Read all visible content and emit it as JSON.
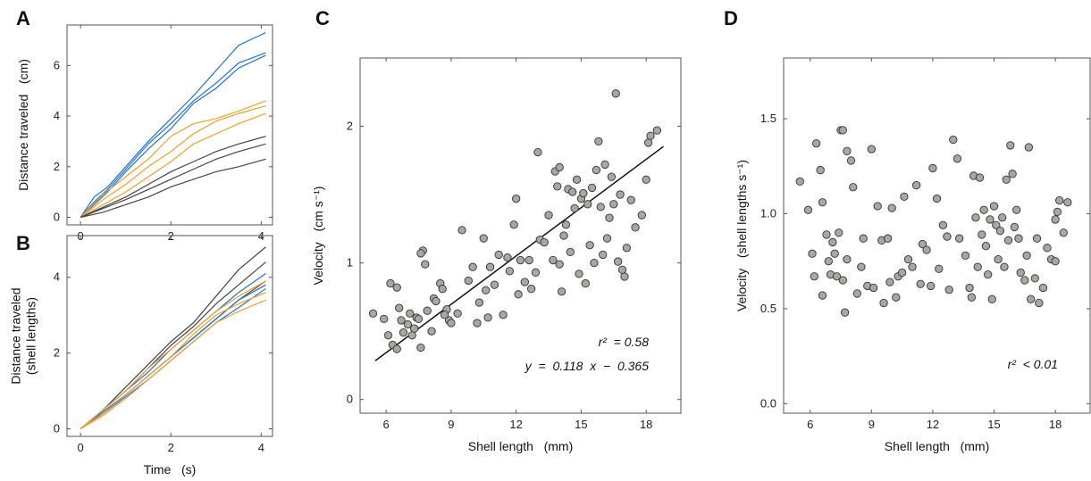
{
  "chart_data": [
    {
      "panel": "A",
      "type": "line",
      "xlabel": "",
      "ylabel": "Distance traveled   (cm)",
      "xlim": [
        -0.3,
        4.25
      ],
      "ylim": [
        -0.3,
        7.6
      ],
      "xticks": [
        0,
        2,
        4
      ],
      "yticks": [
        0,
        2,
        4,
        6
      ],
      "series": [
        {
          "color": "#1f6fd6",
          "x": [
            0,
            0.3,
            0.6,
            1,
            1.5,
            2,
            2.5,
            3,
            3.5,
            4.1
          ],
          "y": [
            0,
            0.8,
            1.2,
            2,
            3,
            3.9,
            4.8,
            5.8,
            6.8,
            7.3
          ]
        },
        {
          "color": "#1f6fd6",
          "x": [
            0,
            0.3,
            0.6,
            1,
            1.5,
            2,
            2.5,
            3,
            3.5,
            4.1
          ],
          "y": [
            0,
            0.6,
            1.1,
            1.9,
            2.9,
            3.7,
            4.6,
            5.3,
            6.1,
            6.5
          ]
        },
        {
          "color": "#1f6fd6",
          "x": [
            0,
            0.3,
            0.6,
            1,
            1.5,
            2,
            2.5,
            3,
            3.5,
            4.1
          ],
          "y": [
            0,
            0.5,
            1,
            1.8,
            2.7,
            3.5,
            4.5,
            5.1,
            5.9,
            6.4
          ]
        },
        {
          "color": "#f0a030",
          "x": [
            0,
            0.5,
            1,
            1.5,
            2,
            2.5,
            3,
            3.5,
            4.1
          ],
          "y": [
            0,
            0.9,
            1.6,
            2.3,
            3.2,
            3.7,
            3.9,
            4.2,
            4.6
          ]
        },
        {
          "color": "#f0a030",
          "x": [
            0,
            0.5,
            1,
            1.5,
            2,
            2.5,
            3,
            3.5,
            4.1
          ],
          "y": [
            0,
            0.7,
            1.3,
            2,
            2.6,
            3.3,
            3.8,
            4.1,
            4.4
          ]
        },
        {
          "color": "#f0a030",
          "x": [
            0,
            0.5,
            1,
            1.5,
            2,
            2.5,
            3,
            3.5,
            4.1
          ],
          "y": [
            0,
            0.5,
            1,
            1.6,
            2.2,
            2.9,
            3.3,
            3.7,
            4.1
          ]
        },
        {
          "color": "#444444",
          "x": [
            0,
            0.5,
            1,
            1.5,
            2,
            2.5,
            3,
            3.5,
            4.1
          ],
          "y": [
            0,
            0.4,
            0.8,
            1.3,
            1.8,
            2.2,
            2.6,
            2.9,
            3.2
          ]
        },
        {
          "color": "#444444",
          "x": [
            0,
            0.5,
            1,
            1.5,
            2,
            2.5,
            3,
            3.5,
            4.1
          ],
          "y": [
            0,
            0.35,
            0.7,
            1.1,
            1.5,
            1.9,
            2.3,
            2.6,
            2.9
          ]
        },
        {
          "color": "#444444",
          "x": [
            0,
            0.5,
            1,
            1.5,
            2,
            2.5,
            3,
            3.5,
            4.1
          ],
          "y": [
            0,
            0.2,
            0.5,
            0.8,
            1.2,
            1.5,
            1.8,
            2.0,
            2.3
          ]
        }
      ]
    },
    {
      "panel": "B",
      "type": "line",
      "xlabel": "Time   (s)",
      "ylabel": "Distance traveled\n(shell lengths)",
      "xlim": [
        -0.3,
        4.25
      ],
      "ylim": [
        -0.2,
        5.1
      ],
      "xticks": [
        0,
        2,
        4
      ],
      "yticks": [
        0,
        2,
        4
      ],
      "series": [
        {
          "color": "#444444",
          "x": [
            0,
            0.5,
            1,
            1.5,
            2,
            2.5,
            3,
            3.5,
            4.1
          ],
          "y": [
            0,
            0.5,
            1.1,
            1.7,
            2.3,
            2.8,
            3.5,
            4.2,
            4.8
          ]
        },
        {
          "color": "#444444",
          "x": [
            0,
            0.5,
            1,
            1.5,
            2,
            2.5,
            3,
            3.5,
            4.1
          ],
          "y": [
            0,
            0.5,
            1,
            1.6,
            2.2,
            2.7,
            3.3,
            3.8,
            4.4
          ]
        },
        {
          "color": "#444444",
          "x": [
            0,
            0.5,
            1,
            1.5,
            2,
            2.5,
            3,
            3.5,
            4.1
          ],
          "y": [
            0,
            0.4,
            0.9,
            1.4,
            1.9,
            2.4,
            2.9,
            3.4,
            3.9
          ]
        },
        {
          "color": "#1f6fd6",
          "x": [
            0,
            0.5,
            1,
            1.5,
            2,
            2.5,
            3,
            3.5,
            4.1
          ],
          "y": [
            0,
            0.5,
            1,
            1.5,
            2.1,
            2.6,
            3.1,
            3.6,
            4.1
          ]
        },
        {
          "color": "#1f6fd6",
          "x": [
            0,
            0.5,
            1,
            1.5,
            2,
            2.5,
            3,
            3.5,
            4.1
          ],
          "y": [
            0,
            0.45,
            0.9,
            1.4,
            1.9,
            2.4,
            2.9,
            3.4,
            3.8
          ]
        },
        {
          "color": "#1f6fd6",
          "x": [
            0,
            0.5,
            1,
            1.5,
            2,
            2.5,
            3,
            3.5,
            4.1
          ],
          "y": [
            0,
            0.4,
            0.85,
            1.3,
            1.8,
            2.3,
            2.8,
            3.2,
            3.7
          ]
        },
        {
          "color": "#f0a030",
          "x": [
            0,
            0.5,
            1,
            1.5,
            2,
            2.5,
            3,
            3.5,
            4.1
          ],
          "y": [
            0,
            0.5,
            1,
            1.6,
            2.1,
            2.6,
            3.1,
            3.5,
            3.9
          ]
        },
        {
          "color": "#f0a030",
          "x": [
            0,
            0.5,
            1,
            1.5,
            2,
            2.5,
            3,
            3.5,
            4.1
          ],
          "y": [
            0,
            0.4,
            0.9,
            1.4,
            1.9,
            2.5,
            3,
            3.3,
            3.6
          ]
        },
        {
          "color": "#f0a030",
          "x": [
            0,
            0.5,
            1,
            1.5,
            2,
            2.5,
            3,
            3.5,
            4.1
          ],
          "y": [
            0,
            0.35,
            0.8,
            1.3,
            1.8,
            2.3,
            2.8,
            3.1,
            3.4
          ]
        }
      ]
    },
    {
      "panel": "C",
      "type": "scatter",
      "xlabel": "Shell length   (mm)",
      "ylabel": "Velocity   (cm s⁻¹)",
      "xlim": [
        4.8,
        19.6
      ],
      "ylim": [
        -0.1,
        2.5
      ],
      "xticks": [
        6,
        9,
        12,
        15,
        18
      ],
      "yticks": [
        0,
        1,
        2
      ],
      "point_color": "#a8a8a0",
      "fit_line": {
        "x": [
          5.5,
          18.8
        ],
        "y": [
          0.284,
          1.853
        ]
      },
      "annotations": [
        "r²  = 0.58",
        "y  =  0.118  x  −  0.365"
      ],
      "points": [
        [
          5.4,
          0.63
        ],
        [
          5.9,
          0.59
        ],
        [
          6.1,
          0.47
        ],
        [
          6.3,
          0.4
        ],
        [
          6.2,
          0.85
        ],
        [
          6.5,
          0.82
        ],
        [
          6.7,
          0.58
        ],
        [
          6.8,
          0.49
        ],
        [
          6.5,
          0.37
        ],
        [
          6.6,
          0.67
        ],
        [
          7.0,
          0.55
        ],
        [
          7.1,
          0.63
        ],
        [
          7.2,
          0.47
        ],
        [
          7.4,
          0.6
        ],
        [
          7.3,
          0.52
        ],
        [
          7.5,
          0.59
        ],
        [
          7.6,
          0.38
        ],
        [
          7.7,
          1.09
        ],
        [
          7.6,
          1.07
        ],
        [
          7.8,
          0.99
        ],
        [
          7.9,
          0.65
        ],
        [
          8.1,
          0.5
        ],
        [
          8.2,
          0.74
        ],
        [
          8.3,
          0.72
        ],
        [
          8.5,
          0.85
        ],
        [
          8.6,
          0.81
        ],
        [
          8.8,
          0.66
        ],
        [
          8.9,
          0.58
        ],
        [
          9.0,
          0.56
        ],
        [
          9.3,
          0.63
        ],
        [
          9.5,
          1.24
        ],
        [
          9.8,
          0.87
        ],
        [
          10.0,
          0.97
        ],
        [
          10.2,
          0.56
        ],
        [
          10.3,
          0.71
        ],
        [
          10.5,
          1.18
        ],
        [
          10.6,
          0.8
        ],
        [
          10.8,
          0.97
        ],
        [
          11.0,
          0.84
        ],
        [
          11.2,
          1.06
        ],
        [
          11.4,
          0.62
        ],
        [
          11.6,
          1.04
        ],
        [
          11.7,
          0.94
        ],
        [
          11.9,
          1.28
        ],
        [
          12.0,
          1.47
        ],
        [
          12.1,
          0.77
        ],
        [
          12.2,
          1.02
        ],
        [
          12.4,
          0.86
        ],
        [
          12.6,
          1.02
        ],
        [
          12.7,
          0.81
        ],
        [
          13.0,
          1.81
        ],
        [
          13.1,
          1.17
        ],
        [
          13.3,
          1.15
        ],
        [
          13.5,
          1.35
        ],
        [
          13.7,
          1.02
        ],
        [
          13.8,
          1.67
        ],
        [
          13.9,
          1.56
        ],
        [
          14.0,
          1.7
        ],
        [
          14.1,
          0.79
        ],
        [
          14.2,
          1.2
        ],
        [
          14.3,
          1.28
        ],
        [
          14.4,
          1.54
        ],
        [
          14.5,
          1.08
        ],
        [
          14.6,
          1.52
        ],
        [
          14.7,
          1.4
        ],
        [
          14.8,
          1.61
        ],
        [
          14.9,
          0.92
        ],
        [
          15.0,
          1.47
        ],
        [
          15.1,
          1.51
        ],
        [
          15.2,
          0.85
        ],
        [
          15.3,
          1.43
        ],
        [
          15.5,
          1.55
        ],
        [
          15.6,
          1.0
        ],
        [
          15.7,
          1.68
        ],
        [
          15.8,
          1.89
        ],
        [
          15.9,
          1.41
        ],
        [
          16.0,
          1.06
        ],
        [
          16.1,
          1.72
        ],
        [
          16.2,
          1.18
        ],
        [
          16.3,
          1.33
        ],
        [
          16.5,
          1.43
        ],
        [
          16.6,
          2.24
        ],
        [
          16.7,
          1.01
        ],
        [
          16.8,
          1.5
        ],
        [
          17.0,
          0.9
        ],
        [
          17.1,
          1.11
        ],
        [
          17.3,
          1.46
        ],
        [
          17.5,
          1.26
        ],
        [
          17.8,
          1.35
        ],
        [
          18.0,
          1.61
        ],
        [
          18.1,
          1.88
        ],
        [
          18.2,
          1.93
        ],
        [
          18.5,
          1.97
        ],
        [
          12.9,
          0.93
        ],
        [
          14.0,
          0.99
        ],
        [
          15.4,
          1.13
        ],
        [
          16.4,
          1.63
        ],
        [
          16.9,
          0.95
        ],
        [
          10.7,
          0.6
        ],
        [
          8.7,
          0.62
        ]
      ]
    },
    {
      "panel": "D",
      "type": "scatter",
      "xlabel": "Shell length   (mm)",
      "ylabel": "Velocity   (shell lengths s⁻¹)",
      "xlim": [
        4.7,
        19.7
      ],
      "ylim": [
        -0.05,
        1.82
      ],
      "xticks": [
        6,
        9,
        12,
        15,
        18
      ],
      "yticks": [
        0.0,
        0.5,
        1.0,
        1.5
      ],
      "ytick_labels": [
        "0.0",
        "0.5",
        "1.0",
        "1.5"
      ],
      "point_color": "#a8a8a0",
      "annotations": [
        "r²  < 0.01"
      ],
      "points": [
        [
          5.5,
          1.17
        ],
        [
          5.9,
          1.02
        ],
        [
          6.1,
          0.79
        ],
        [
          6.2,
          0.67
        ],
        [
          6.3,
          1.37
        ],
        [
          6.5,
          1.23
        ],
        [
          6.6,
          1.06
        ],
        [
          6.6,
          0.57
        ],
        [
          6.8,
          0.89
        ],
        [
          6.9,
          0.75
        ],
        [
          7.0,
          0.68
        ],
        [
          7.1,
          0.85
        ],
        [
          7.2,
          0.79
        ],
        [
          7.3,
          0.67
        ],
        [
          7.4,
          0.9
        ],
        [
          7.5,
          1.44
        ],
        [
          7.6,
          1.44
        ],
        [
          7.6,
          0.65
        ],
        [
          7.7,
          0.48
        ],
        [
          7.8,
          1.33
        ],
        [
          7.8,
          0.76
        ],
        [
          8.0,
          1.28
        ],
        [
          8.1,
          1.14
        ],
        [
          8.3,
          0.58
        ],
        [
          8.5,
          0.72
        ],
        [
          8.6,
          0.87
        ],
        [
          8.8,
          0.62
        ],
        [
          9.0,
          1.34
        ],
        [
          9.1,
          0.61
        ],
        [
          9.3,
          1.04
        ],
        [
          9.5,
          0.86
        ],
        [
          9.6,
          0.53
        ],
        [
          9.8,
          0.87
        ],
        [
          10.0,
          1.03
        ],
        [
          10.2,
          0.56
        ],
        [
          10.3,
          0.67
        ],
        [
          10.5,
          0.69
        ],
        [
          10.6,
          1.09
        ],
        [
          10.8,
          0.76
        ],
        [
          11.0,
          0.72
        ],
        [
          11.2,
          1.15
        ],
        [
          11.5,
          0.84
        ],
        [
          11.7,
          0.81
        ],
        [
          11.9,
          0.62
        ],
        [
          12.0,
          1.24
        ],
        [
          12.2,
          1.08
        ],
        [
          12.3,
          0.71
        ],
        [
          12.5,
          0.94
        ],
        [
          12.7,
          0.88
        ],
        [
          12.8,
          0.6
        ],
        [
          13.0,
          1.39
        ],
        [
          13.2,
          1.29
        ],
        [
          13.3,
          0.87
        ],
        [
          13.6,
          0.78
        ],
        [
          13.8,
          0.61
        ],
        [
          14.0,
          1.2
        ],
        [
          14.1,
          0.98
        ],
        [
          14.2,
          0.72
        ],
        [
          14.3,
          1.19
        ],
        [
          14.4,
          0.89
        ],
        [
          14.5,
          1.02
        ],
        [
          14.6,
          0.83
        ],
        [
          14.7,
          0.68
        ],
        [
          14.8,
          0.97
        ],
        [
          14.9,
          0.55
        ],
        [
          15.0,
          1.04
        ],
        [
          15.1,
          0.94
        ],
        [
          15.2,
          0.76
        ],
        [
          15.3,
          0.91
        ],
        [
          15.4,
          0.98
        ],
        [
          15.5,
          0.72
        ],
        [
          15.6,
          1.18
        ],
        [
          15.7,
          0.86
        ],
        [
          15.8,
          1.36
        ],
        [
          15.9,
          1.21
        ],
        [
          16.0,
          0.93
        ],
        [
          16.1,
          1.02
        ],
        [
          16.2,
          0.87
        ],
        [
          16.3,
          0.69
        ],
        [
          16.5,
          0.65
        ],
        [
          16.6,
          0.78
        ],
        [
          16.7,
          1.35
        ],
        [
          16.8,
          0.55
        ],
        [
          17.0,
          0.66
        ],
        [
          17.1,
          0.87
        ],
        [
          17.2,
          0.53
        ],
        [
          17.4,
          0.61
        ],
        [
          17.6,
          0.82
        ],
        [
          17.8,
          0.76
        ],
        [
          18.0,
          0.97
        ],
        [
          18.1,
          1.01
        ],
        [
          18.2,
          1.07
        ],
        [
          18.4,
          0.9
        ],
        [
          18.6,
          1.06
        ],
        [
          18.0,
          0.75
        ],
        [
          13.9,
          0.56
        ],
        [
          11.4,
          0.63
        ],
        [
          9.9,
          0.64
        ]
      ]
    }
  ]
}
